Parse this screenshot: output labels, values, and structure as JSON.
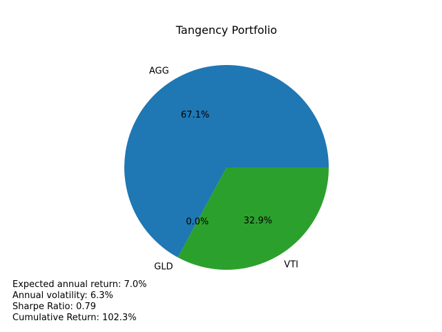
{
  "chart_data": {
    "type": "pie",
    "title": "Tangency Portfolio",
    "categories": [
      "AGG",
      "GLD",
      "VTI"
    ],
    "values": [
      67.1,
      0.0,
      32.9
    ],
    "pct_labels": [
      "67.1%",
      "0.0%",
      "32.9%"
    ],
    "colors": [
      "#1f77b4",
      "#ff7f0e",
      "#2ca02c"
    ],
    "start_angle_deg": 0,
    "direction": "counterclockwise"
  },
  "stats": {
    "expected_return": "Expected annual return: 7.0%",
    "volatility": "Annual volatility: 6.3%",
    "sharpe": "Sharpe Ratio: 0.79",
    "cumulative": "Cumulative Return: 102.3%"
  }
}
